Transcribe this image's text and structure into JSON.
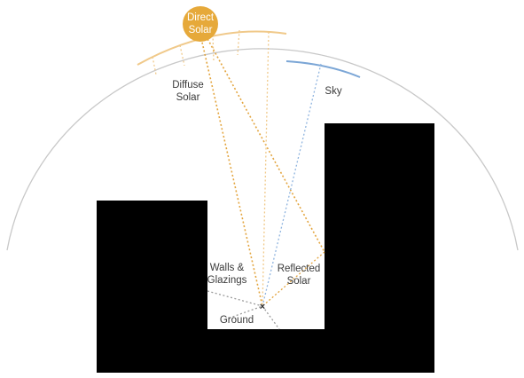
{
  "labels": {
    "direct_solar_line1": "Direct",
    "direct_solar_line2": "Solar",
    "diffuse_solar_line1": "Diffuse",
    "diffuse_solar_line2": "Solar",
    "sky": "Sky",
    "walls_glazings_line1": "Walls &",
    "walls_glazings_line2": "Glazings",
    "reflected_solar_line1": "Reflected",
    "reflected_solar_line2": "Solar",
    "ground": "Ground",
    "point_marker": "×"
  },
  "colors": {
    "sun": "#e6a93a",
    "solar_rays": "#e3a53f",
    "diffuse_arc": "#f0c98a",
    "sky_arc": "#7ba6d6",
    "sky_ray": "#8fb4df",
    "ground_wall_rays": "#9a9a9a",
    "dome": "#c8c8c8",
    "buildings": "#000000"
  }
}
